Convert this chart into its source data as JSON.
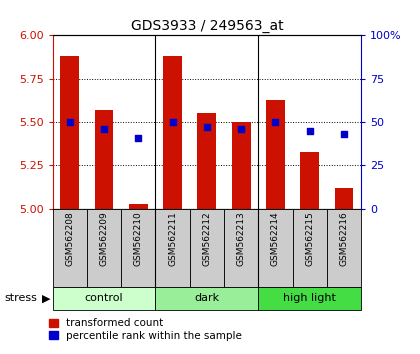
{
  "title": "GDS3933 / 249563_at",
  "samples": [
    "GSM562208",
    "GSM562209",
    "GSM562210",
    "GSM562211",
    "GSM562212",
    "GSM562213",
    "GSM562214",
    "GSM562215",
    "GSM562216"
  ],
  "transformed_counts": [
    5.88,
    5.57,
    5.03,
    5.88,
    5.55,
    5.5,
    5.63,
    5.33,
    5.12
  ],
  "percentile_ranks": [
    50,
    46,
    41,
    50,
    47,
    46,
    50,
    45,
    43
  ],
  "ylim_left": [
    5.0,
    6.0
  ],
  "ylim_right": [
    0,
    100
  ],
  "yticks_left": [
    5.0,
    5.25,
    5.5,
    5.75,
    6.0
  ],
  "yticks_right": [
    0,
    25,
    50,
    75,
    100
  ],
  "groups": [
    {
      "label": "control",
      "color": "#ccffcc"
    },
    {
      "label": "dark",
      "color": "#99ee99"
    },
    {
      "label": "high light",
      "color": "#44dd44"
    }
  ],
  "stress_label": "stress",
  "bar_color": "#cc1100",
  "dot_color": "#0000cc",
  "bar_width": 0.55,
  "background_color": "#ffffff",
  "left_tick_color": "#cc1100",
  "right_tick_color": "#0000cc",
  "label_box_color": "#cccccc",
  "legend_square_size": 6
}
